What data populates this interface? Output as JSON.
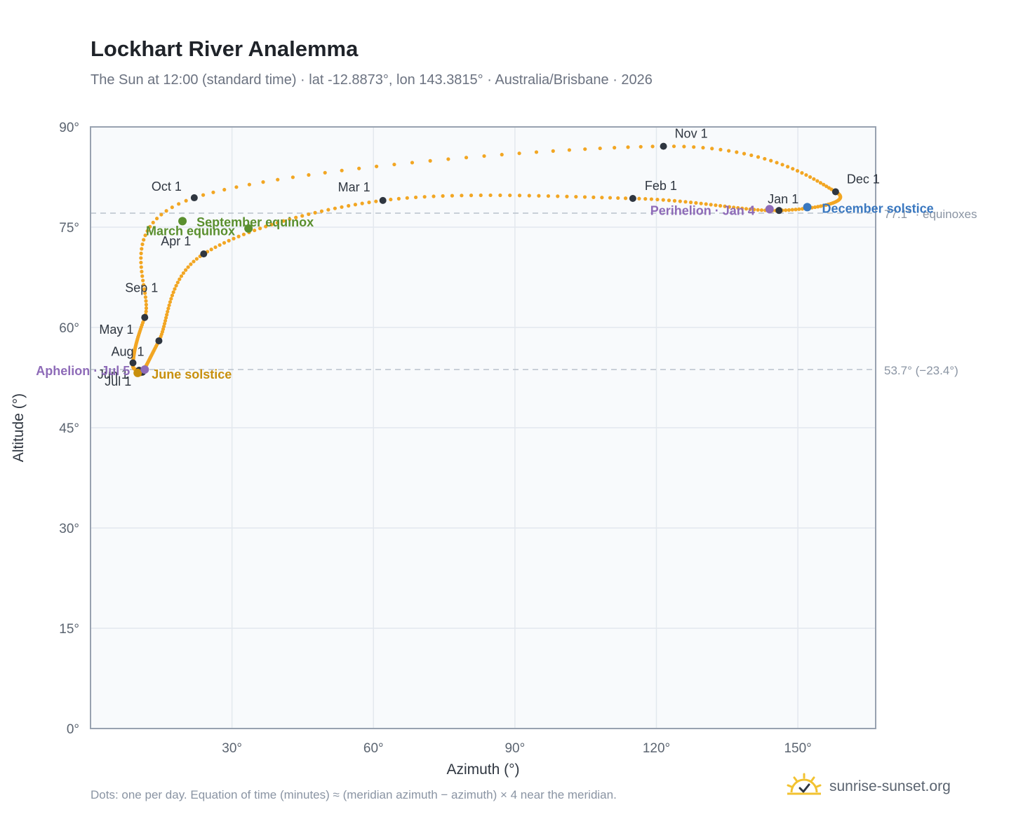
{
  "header": {
    "title": "Lockhart River Analemma",
    "subtitle": "The Sun at 12:00 (standard time) · lat -12.8873°, lon 143.3815° · Australia/Brisbane · 2026"
  },
  "footer": {
    "note": "Dots: one per day. Equation of time (minutes) ≈ (meridian azimuth − azimuth) × 4 near the meridian.",
    "brand": "sunrise-sunset.org",
    "brand_icon": "sun-check-icon"
  },
  "chart_data": {
    "type": "scatter",
    "xlabel": "Azimuth (°)",
    "ylabel": "Altitude (°)",
    "xlim": [
      0,
      166.5
    ],
    "ylim": [
      0,
      90
    ],
    "xticks": [
      30,
      60,
      90,
      120,
      150
    ],
    "xtick_labels": [
      "30°",
      "60°",
      "90°",
      "120°",
      "150°"
    ],
    "yticks": [
      0,
      15,
      30,
      45,
      60,
      75,
      90
    ],
    "ytick_labels": [
      "0°",
      "15°",
      "30°",
      "45°",
      "60°",
      "75°",
      "90°"
    ],
    "grid": true,
    "colors": {
      "path": "#f2a623",
      "month_marker": "#2f3640",
      "equinox": "#5a8f2e",
      "june_solstice": "#c8900d",
      "december_solstice": "#3a78c0",
      "apsis": "#8e6bb8",
      "reference_line": "#b9c2cc",
      "plot_bg": "#f8fafc",
      "frame": "#98a2b0"
    },
    "reference_lines": [
      {
        "altitude": 77.1,
        "label": "77.1° · equinoxes"
      },
      {
        "altitude": 53.7,
        "label": "53.7° (−23.4°)"
      }
    ],
    "month_markers": [
      {
        "label": "Jan 1",
        "az": 146.0,
        "alt": 77.5
      },
      {
        "label": "Feb 1",
        "az": 115.0,
        "alt": 79.3
      },
      {
        "label": "Mar 1",
        "az": 62.0,
        "alt": 79.0
      },
      {
        "label": "Apr 1",
        "az": 24.0,
        "alt": 71.0
      },
      {
        "label": "May 1",
        "az": 14.5,
        "alt": 58.0
      },
      {
        "label": "Jun 1",
        "az": 11.0,
        "alt": 53.3
      },
      {
        "label": "Jul 1",
        "az": 10.3,
        "alt": 53.6
      },
      {
        "label": "Aug 1",
        "az": 9.0,
        "alt": 54.7
      },
      {
        "label": "Sep 1",
        "az": 11.5,
        "alt": 61.5
      },
      {
        "label": "Oct 1",
        "az": 22.0,
        "alt": 79.4
      },
      {
        "label": "Nov 1",
        "az": 121.5,
        "alt": 87.1
      },
      {
        "label": "Dec 1",
        "az": 158.0,
        "alt": 80.3
      }
    ],
    "special_points": [
      {
        "label": "March equinox",
        "az": 19.5,
        "alt": 75.9,
        "kind": "equinox"
      },
      {
        "label": "September equinox",
        "az": 33.5,
        "alt": 74.8,
        "kind": "equinox"
      },
      {
        "label": "June solstice",
        "az": 10.0,
        "alt": 53.2,
        "kind": "june_solstice"
      },
      {
        "label": "December solstice",
        "az": 152.0,
        "alt": 78.0,
        "kind": "december_solstice"
      },
      {
        "label": "Aphelion · Jul 5",
        "az": 11.5,
        "alt": 53.7,
        "kind": "apsis"
      },
      {
        "label": "Perihelion · Jan 4",
        "az": 144.0,
        "alt": 77.7,
        "kind": "apsis"
      }
    ]
  }
}
